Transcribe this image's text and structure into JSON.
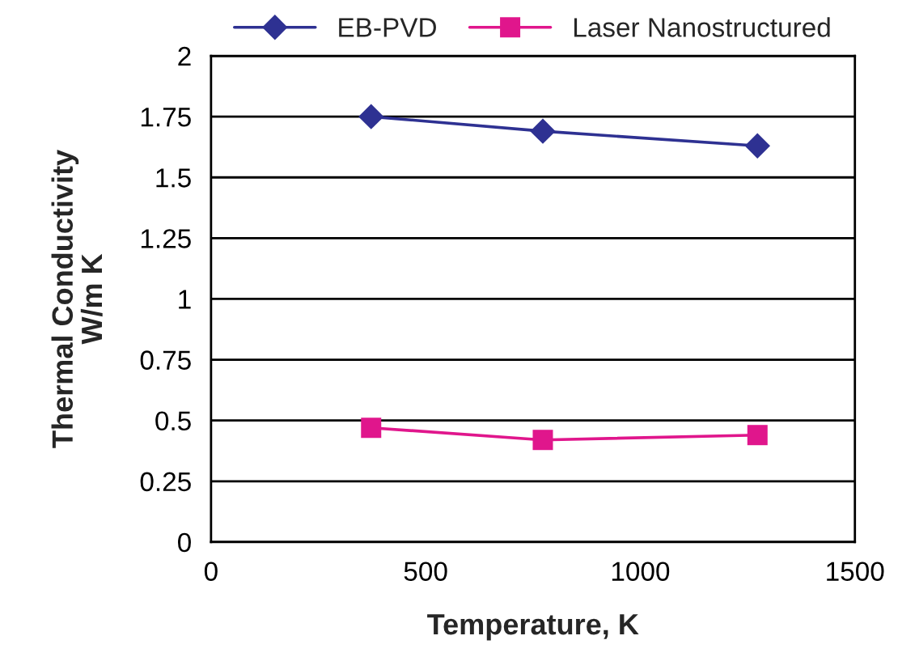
{
  "chart_data": {
    "type": "line",
    "xlabel": "Temperature, K",
    "ylabel": "Thermal Conductivity\nW/m K",
    "x": [
      373,
      773,
      1273
    ],
    "series": [
      {
        "name": "EB-PVD",
        "color": "#2e3192",
        "values": [
          1.75,
          1.69,
          1.63
        ],
        "marker": "diamond"
      },
      {
        "name": "Laser Nanostructured",
        "color": "#e0168c",
        "values": [
          0.47,
          0.42,
          0.44
        ],
        "marker": "square"
      }
    ],
    "xlim": [
      0,
      1500
    ],
    "xticks": [
      0,
      500,
      1000,
      1500
    ],
    "ylim": [
      0,
      2
    ],
    "yticks": [
      0,
      0.25,
      0.5,
      0.75,
      1,
      1.25,
      1.5,
      1.75,
      2
    ],
    "grid": "y",
    "legend": "top",
    "line_style": "solid"
  }
}
